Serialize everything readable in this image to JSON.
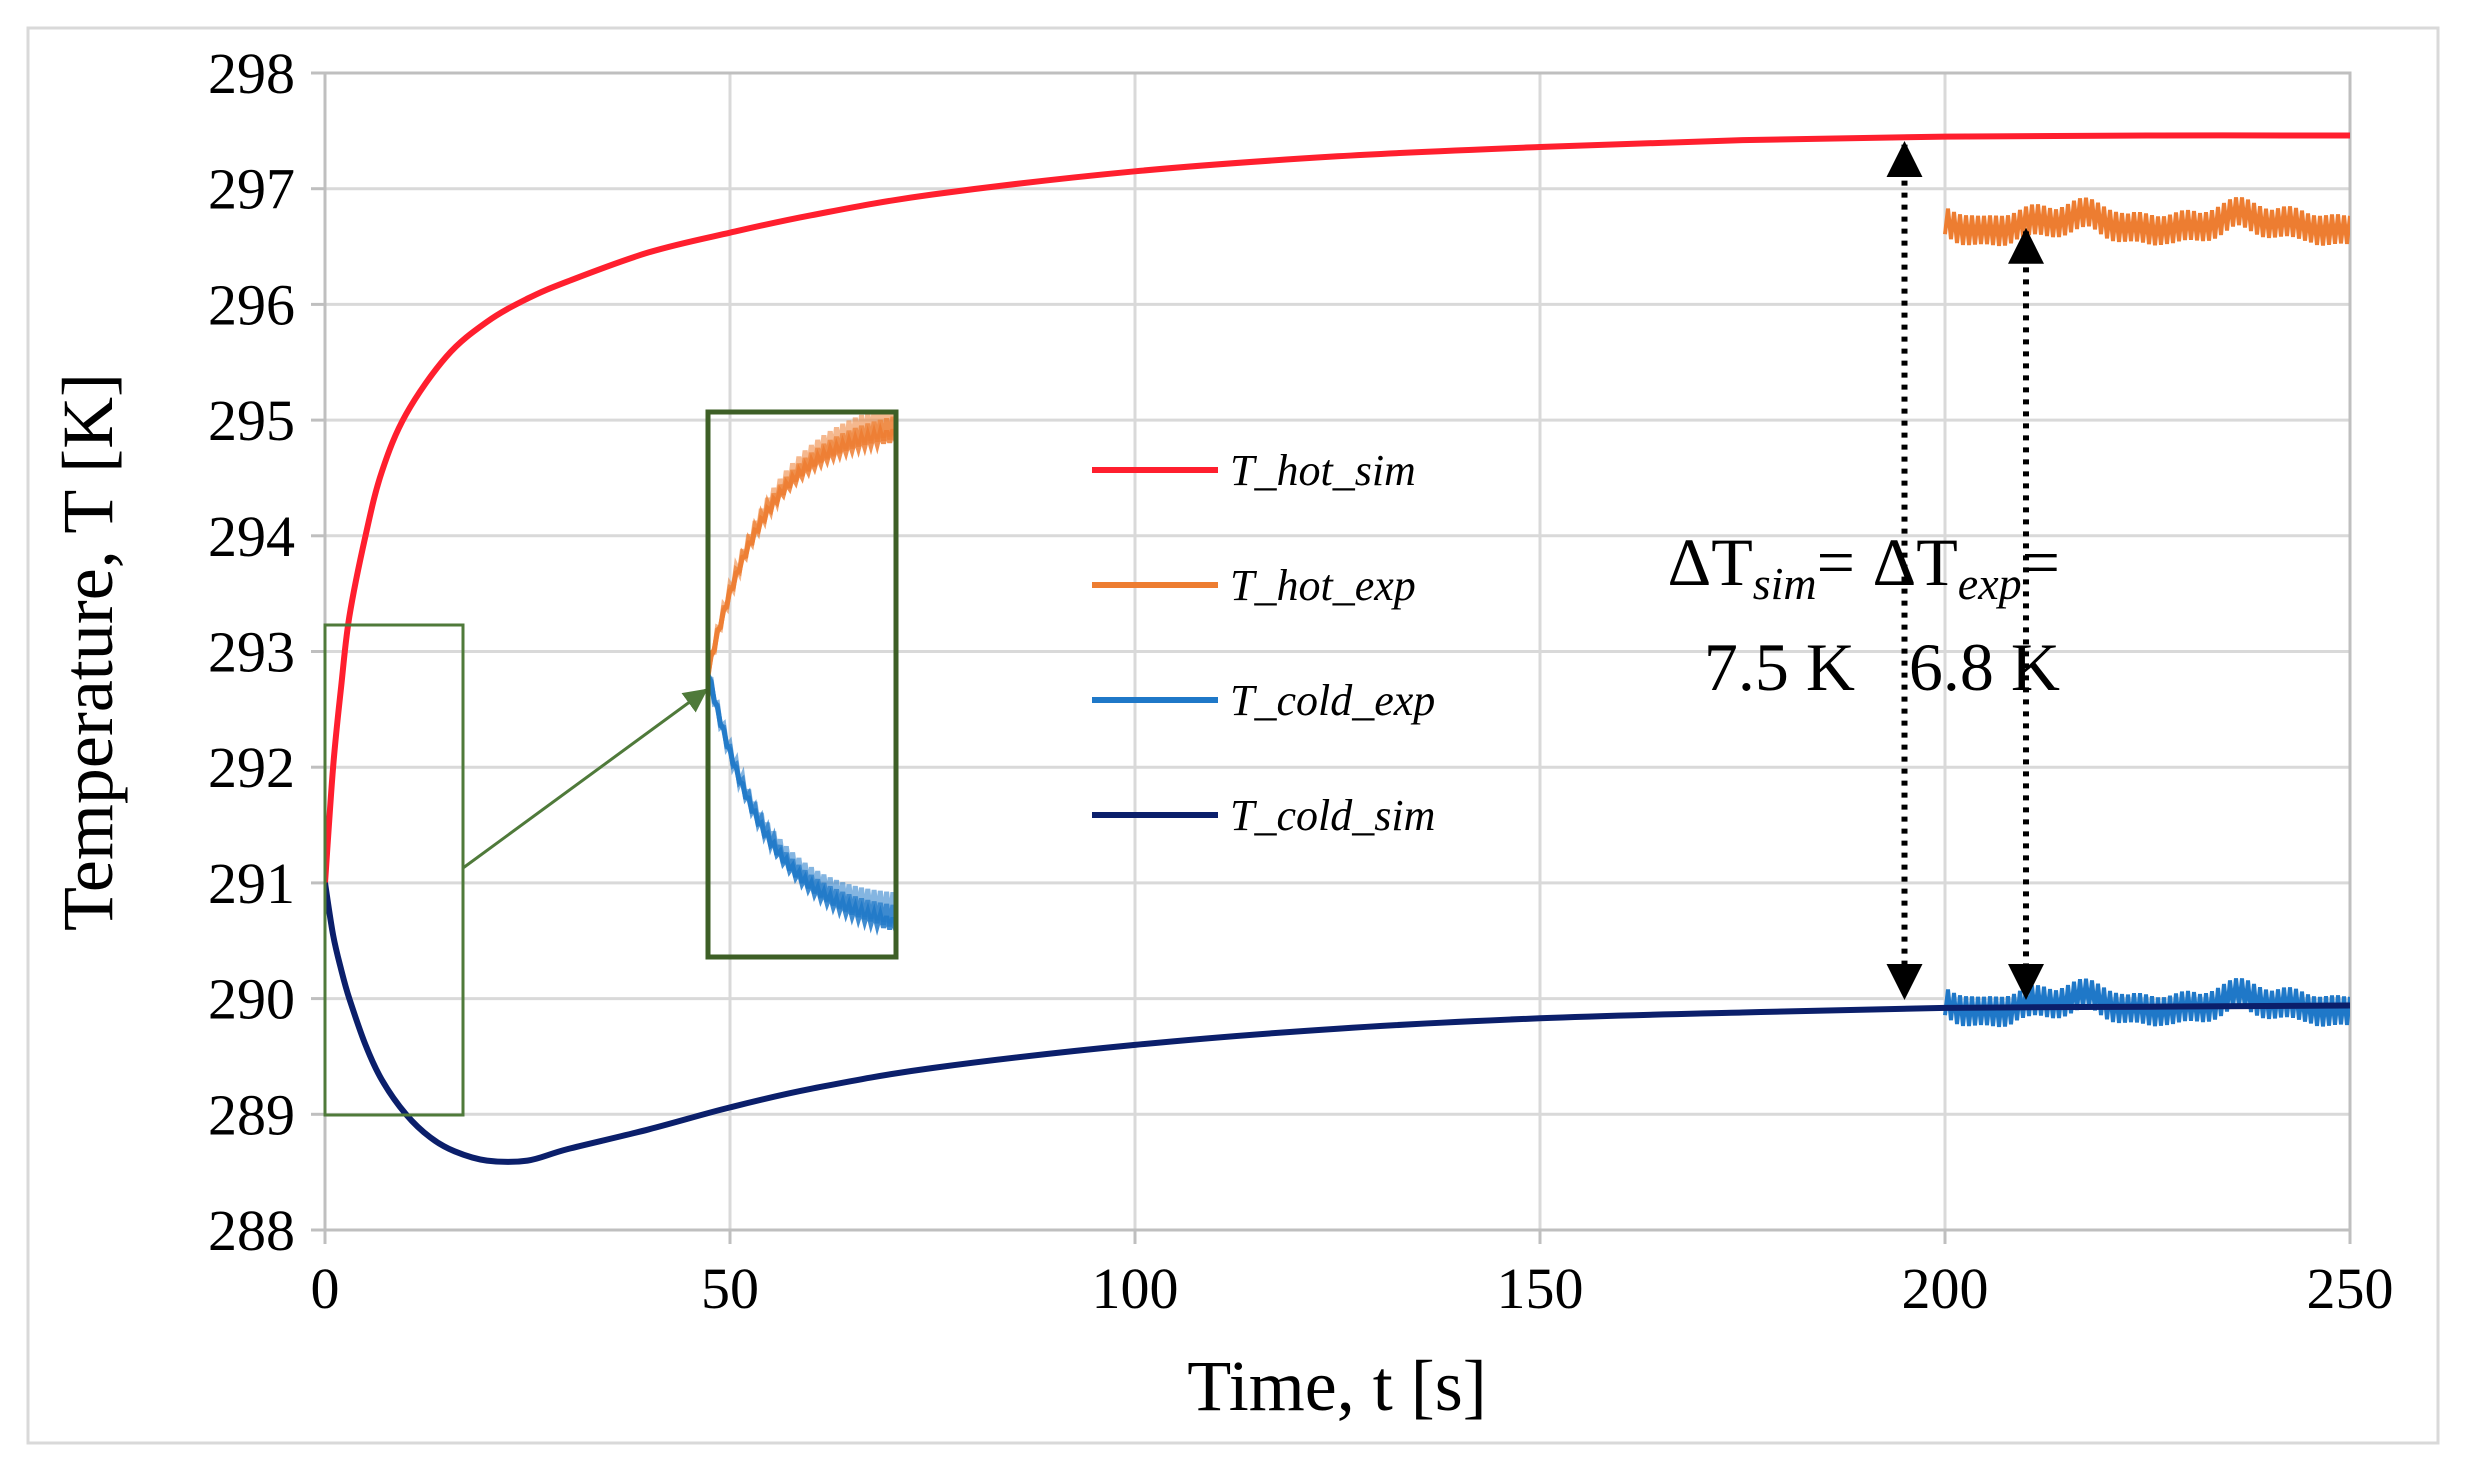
{
  "colors": {
    "hot_sim": "#ff1f2e",
    "hot_exp": "#ed7d31",
    "cold_exp": "#1f78c8",
    "cold_sim": "#0b1f6b",
    "grid": "#d9d9d9",
    "box": "#4f7a3a"
  },
  "chart_data": {
    "type": "line",
    "xlabel": "Time, t [s]",
    "ylabel": "Temperature, T [K]",
    "xlim": [
      0,
      250
    ],
    "ylim": [
      288,
      298
    ],
    "xticks": [
      0,
      50,
      100,
      150,
      200,
      250
    ],
    "yticks": [
      288,
      289,
      290,
      291,
      292,
      293,
      294,
      295,
      296,
      297,
      298
    ],
    "grid": true,
    "legend": {
      "position": "center",
      "entries": [
        "T_hot_sim",
        "T_hot_exp",
        "T_cold_exp",
        "T_cold_sim"
      ]
    },
    "series": [
      {
        "name": "T_hot_sim",
        "color": "#ff1f2e",
        "x": [
          0,
          1,
          2,
          3,
          5,
          7,
          10,
          15,
          20,
          25,
          30,
          40,
          50,
          60,
          75,
          100,
          125,
          150,
          175,
          200,
          225,
          250
        ],
        "y": [
          291.0,
          292.0,
          292.7,
          293.3,
          294.0,
          294.55,
          295.05,
          295.55,
          295.85,
          296.05,
          296.2,
          296.45,
          296.62,
          296.77,
          296.95,
          297.15,
          297.28,
          297.36,
          297.42,
          297.45,
          297.46,
          297.46
        ]
      },
      {
        "name": "T_hot_exp",
        "color": "#ed7d31",
        "x_range": [
          200,
          250
        ],
        "mean": 296.7,
        "amplitude": 0.2,
        "note": "oscillating measured signal"
      },
      {
        "name": "T_cold_exp",
        "color": "#1f78c8",
        "x_range": [
          200,
          250
        ],
        "mean": 289.95,
        "amplitude": 0.2,
        "note": "oscillating measured signal"
      },
      {
        "name": "T_cold_sim",
        "color": "#0b1f6b",
        "x": [
          0,
          1,
          2,
          3,
          5,
          7,
          10,
          13,
          16,
          20,
          25,
          30,
          40,
          50,
          60,
          75,
          100,
          125,
          150,
          175,
          200,
          225,
          250
        ],
        "y": [
          291.0,
          290.55,
          290.25,
          290.0,
          289.6,
          289.3,
          289.0,
          288.8,
          288.68,
          288.6,
          288.6,
          288.7,
          288.87,
          289.06,
          289.22,
          289.4,
          289.6,
          289.74,
          289.83,
          289.88,
          289.92,
          289.93,
          289.94
        ]
      }
    ],
    "inset": {
      "description": "zoom of initial transient",
      "source_x_range": [
        0,
        17
      ],
      "source_y_range": [
        289,
        293.25
      ]
    },
    "annotations": [
      {
        "id": "dT_sim",
        "delta_label": "ΔT",
        "subscript": "sim",
        "equals": "=",
        "value": "7.5 K",
        "at_x": 195,
        "from_y": 289.95,
        "to_y": 297.45
      },
      {
        "id": "dT_exp",
        "delta_label": "ΔT",
        "subscript": "exp",
        "equals": "=",
        "value": "6.8 K",
        "at_x": 210,
        "from_y": 289.95,
        "to_y": 296.7
      }
    ]
  }
}
